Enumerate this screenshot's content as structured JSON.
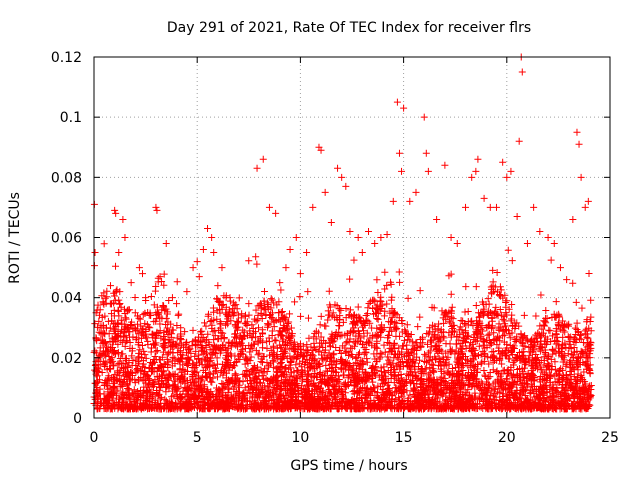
{
  "chart_data": {
    "type": "scatter",
    "title": "Day 291 of 2021, Rate Of TEC Index for receiver flrs",
    "xlabel": "GPS time / hours",
    "ylabel": "ROTI / TECUs",
    "xlim": [
      0,
      25
    ],
    "ylim": [
      0,
      0.12
    ],
    "xticks": [
      0,
      5,
      10,
      15,
      20,
      25
    ],
    "xtick_labels": [
      "0",
      "5",
      "10",
      "15",
      "20",
      "25"
    ],
    "yticks": [
      0,
      0.02,
      0.04,
      0.06,
      0.08,
      0.1,
      0.12
    ],
    "ytick_labels": [
      "0",
      "0.02",
      "0.04",
      "0.06",
      "0.08",
      "0.1",
      "0.12"
    ],
    "grid": true,
    "marker": "+",
    "color": "#ff0000",
    "series": [
      {
        "name": "ROTI",
        "x": [
          0.02,
          0.05,
          0.1,
          0.15,
          0.2,
          0.25,
          0.3,
          0.4,
          0.5,
          0.6,
          0.8,
          1.0,
          1.05,
          1.2,
          1.25,
          1.4,
          1.5,
          1.6,
          1.8,
          2.0,
          2.2,
          2.35,
          2.5,
          2.7,
          3.0,
          3.05,
          3.2,
          3.5,
          3.8,
          4.0,
          4.2,
          4.5,
          4.8,
          5.0,
          5.1,
          5.3,
          5.5,
          5.7,
          5.8,
          6.0,
          6.2,
          6.4,
          6.8,
          7.0,
          7.5,
          7.9,
          8.2,
          8.5,
          8.8,
          9.0,
          9.3,
          9.5,
          9.8,
          10.0,
          10.3,
          10.6,
          10.9,
          11.0,
          11.2,
          11.5,
          11.8,
          12.0,
          12.2,
          12.4,
          12.8,
          13.0,
          13.3,
          13.6,
          13.9,
          14.2,
          14.5,
          14.7,
          14.8,
          14.9,
          15.0,
          15.3,
          15.6,
          16.0,
          16.1,
          16.2,
          16.6,
          17.0,
          17.3,
          17.6,
          18.0,
          18.3,
          18.5,
          18.6,
          18.9,
          19.2,
          19.5,
          19.8,
          20.0,
          20.2,
          20.5,
          20.6,
          20.7,
          20.75,
          21.0,
          21.3,
          21.6,
          22.0,
          22.3,
          22.6,
          22.9,
          23.2,
          23.4,
          23.5,
          23.6,
          23.8,
          23.95
        ],
        "y": [
          0.071,
          0.055,
          0.035,
          0.012,
          0.02,
          0.008,
          0.036,
          0.028,
          0.018,
          0.03,
          0.044,
          0.069,
          0.068,
          0.055,
          0.042,
          0.066,
          0.06,
          0.03,
          0.045,
          0.035,
          0.05,
          0.048,
          0.04,
          0.03,
          0.07,
          0.069,
          0.047,
          0.058,
          0.04,
          0.038,
          0.03,
          0.042,
          0.05,
          0.052,
          0.047,
          0.056,
          0.063,
          0.06,
          0.055,
          0.044,
          0.05,
          0.04,
          0.035,
          0.032,
          0.038,
          0.083,
          0.086,
          0.07,
          0.068,
          0.045,
          0.05,
          0.056,
          0.06,
          0.048,
          0.055,
          0.07,
          0.09,
          0.089,
          0.075,
          0.065,
          0.083,
          0.08,
          0.077,
          0.062,
          0.06,
          0.055,
          0.062,
          0.058,
          0.06,
          0.061,
          0.072,
          0.105,
          0.088,
          0.082,
          0.103,
          0.072,
          0.075,
          0.1,
          0.088,
          0.082,
          0.066,
          0.084,
          0.06,
          0.058,
          0.07,
          0.08,
          0.082,
          0.086,
          0.073,
          0.07,
          0.07,
          0.085,
          0.08,
          0.082,
          0.067,
          0.092,
          0.12,
          0.115,
          0.058,
          0.07,
          0.062,
          0.06,
          0.058,
          0.05,
          0.046,
          0.066,
          0.095,
          0.091,
          0.08,
          0.07,
          0.072
        ]
      }
    ]
  }
}
